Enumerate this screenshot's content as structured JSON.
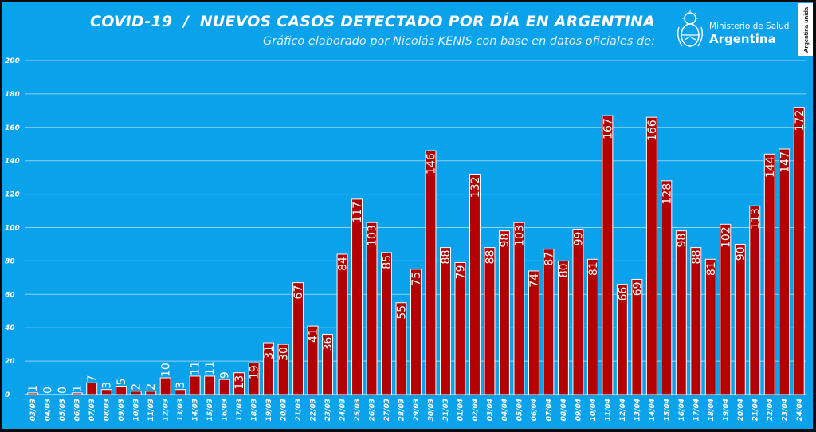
{
  "header": {
    "title": "COVID-19  /  NUEVOS CASOS DETECTADO POR DÍA EN ARGENTINA",
    "subtitle": "Gráfico elaborado por Nicolás KENIS con base en datos oficiales de:"
  },
  "logos": {
    "ministry_line": "Ministerio de Salud",
    "ministry_country": "Argentina",
    "unida": "Argentina unida"
  },
  "colors": {
    "background": "#0aa2ea",
    "bar_fill": "#b30000",
    "bar_stroke": "#ffffff",
    "gridline": "#8fd3f5"
  },
  "chart_data": {
    "type": "bar",
    "title": "COVID-19  /  NUEVOS CASOS DETECTADO POR DÍA EN ARGENTINA",
    "xlabel": "",
    "ylabel": "",
    "ylim": [
      0,
      200
    ],
    "yticks": [
      0,
      20,
      40,
      60,
      80,
      100,
      120,
      140,
      160,
      180,
      200
    ],
    "grid": true,
    "legend": "none",
    "categories": [
      "03/03",
      "04/03",
      "05/03",
      "06/03",
      "07/03",
      "08/03",
      "09/03",
      "10/03",
      "11/03",
      "12/03",
      "13/03",
      "14/03",
      "15/03",
      "16/03",
      "17/03",
      "18/03",
      "19/03",
      "20/03",
      "21/03",
      "22/03",
      "23/03",
      "24/03",
      "25/03",
      "26/03",
      "27/03",
      "28/03",
      "29/03",
      "30/03",
      "31/03",
      "01/04",
      "02/04",
      "03/04",
      "04/04",
      "05/04",
      "06/04",
      "07/04",
      "08/04",
      "09/04",
      "10/04",
      "11/04",
      "12/04",
      "13/04",
      "14/04",
      "15/04",
      "16/04",
      "17/04",
      "18/04",
      "19/04",
      "20/04",
      "21/04",
      "22/04",
      "23/04",
      "24/04"
    ],
    "values": [
      1,
      0,
      0,
      1,
      7,
      3,
      5,
      2,
      2,
      10,
      3,
      11,
      11,
      9,
      13,
      19,
      31,
      30,
      67,
      41,
      36,
      84,
      117,
      103,
      85,
      55,
      75,
      146,
      88,
      79,
      132,
      88,
      98,
      103,
      74,
      87,
      80,
      99,
      81,
      167,
      66,
      69,
      166,
      128,
      98,
      88,
      81,
      102,
      90,
      113,
      144,
      147,
      172
    ]
  }
}
